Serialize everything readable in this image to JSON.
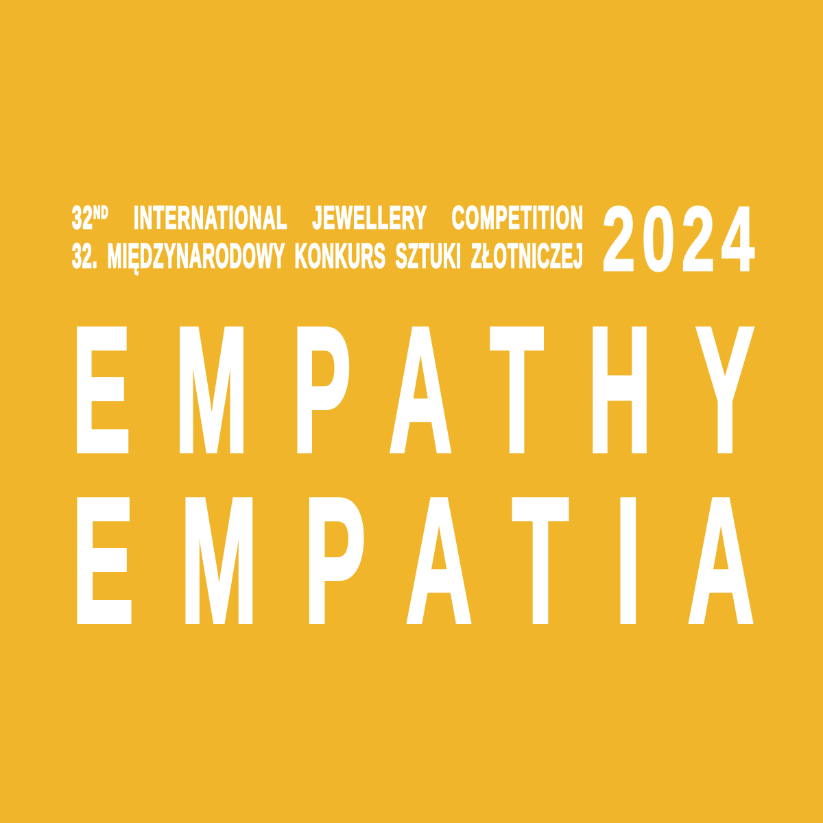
{
  "poster": {
    "background_color": "#F0B52B",
    "text_color": "#FFFFFF",
    "header": {
      "edition_number": "32",
      "edition_ordinal": "ND",
      "title_en_words": [
        "INTERNATIONAL",
        "JEWELLERY",
        "COMPETITION"
      ],
      "title_pl_words": [
        "32.",
        "MIĘDZYNARODOWY",
        "KONKURS",
        "SZTUKI",
        "ZŁOTNICZEJ"
      ],
      "year": "2024"
    },
    "theme_en": "EMPATHY",
    "theme_pl": "EMPATIA"
  }
}
